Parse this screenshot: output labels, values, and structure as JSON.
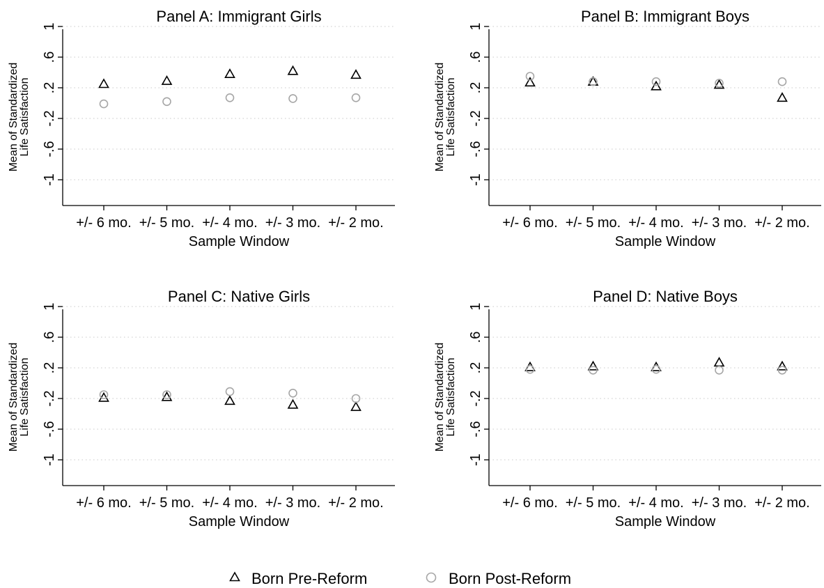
{
  "chart_data": [
    {
      "type": "scatter",
      "title": "Panel A: Immigrant Girls",
      "xlabel": "Sample Window",
      "ylabel": [
        "Mean of Standardized",
        "Life Satisfaction"
      ],
      "categories": [
        "+/- 6 mo.",
        "+/- 5 mo.",
        "+/- 4 mo.",
        "+/- 3 mo.",
        "+/- 2 mo."
      ],
      "yticks": [
        "-1",
        "-.6",
        "-.2",
        ".2",
        ".6",
        "1"
      ],
      "ylim": [
        -1.1,
        1.1
      ],
      "grid": true,
      "series": [
        {
          "name": "Born Pre-Reform",
          "values": [
            0.25,
            0.29,
            0.38,
            0.42,
            0.37
          ]
        },
        {
          "name": "Born Post-Reform",
          "values": [
            -0.01,
            0.02,
            0.07,
            0.06,
            0.07
          ]
        }
      ]
    },
    {
      "type": "scatter",
      "title": "Panel B: Immigrant Boys",
      "xlabel": "Sample Window",
      "ylabel": [
        "Mean of Standardized",
        "Life Satisfaction"
      ],
      "categories": [
        "+/- 6 mo.",
        "+/- 5 mo.",
        "+/- 4 mo.",
        "+/- 3 mo.",
        "+/- 2 mo."
      ],
      "yticks": [
        "-1",
        "-.6",
        "-.2",
        ".2",
        ".6",
        "1"
      ],
      "ylim": [
        -1.1,
        1.1
      ],
      "grid": true,
      "series": [
        {
          "name": "Born Pre-Reform",
          "values": [
            0.27,
            0.28,
            0.22,
            0.24,
            0.07
          ]
        },
        {
          "name": "Born Post-Reform",
          "values": [
            0.35,
            0.28,
            0.28,
            0.26,
            0.28
          ]
        }
      ]
    },
    {
      "type": "scatter",
      "title": "Panel C: Native Girls",
      "xlabel": "Sample Window",
      "ylabel": [
        "Mean of Standardized",
        "Life Satisfaction"
      ],
      "categories": [
        "+/- 6 mo.",
        "+/- 5 mo.",
        "+/- 4 mo.",
        "+/- 3 mo.",
        "+/- 2 mo."
      ],
      "yticks": [
        "-1",
        "-.6",
        "-.2",
        ".2",
        ".6",
        "1"
      ],
      "ylim": [
        -1.1,
        1.1
      ],
      "grid": true,
      "series": [
        {
          "name": "Born Pre-Reform",
          "values": [
            -0.19,
            -0.18,
            -0.23,
            -0.28,
            -0.31
          ]
        },
        {
          "name": "Born Post-Reform",
          "values": [
            -0.15,
            -0.15,
            -0.11,
            -0.13,
            -0.2
          ]
        }
      ]
    },
    {
      "type": "scatter",
      "title": "Panel D: Native Boys",
      "xlabel": "Sample Window",
      "ylabel": [
        "Mean of Standardized",
        "Life Satisfaction"
      ],
      "categories": [
        "+/- 6 mo.",
        "+/- 5 mo.",
        "+/- 4 mo.",
        "+/- 3 mo.",
        "+/- 2 mo."
      ],
      "yticks": [
        "-1",
        "-.6",
        "-.2",
        ".2",
        ".6",
        "1"
      ],
      "ylim": [
        -1.1,
        1.1
      ],
      "grid": true,
      "series": [
        {
          "name": "Born Pre-Reform",
          "values": [
            0.21,
            0.22,
            0.21,
            0.27,
            0.22
          ]
        },
        {
          "name": "Born Post-Reform",
          "values": [
            0.18,
            0.17,
            0.18,
            0.17,
            0.17
          ]
        }
      ]
    }
  ],
  "legend": {
    "placement": "bottom-center",
    "items": [
      {
        "label": "Born Pre-Reform",
        "marker": "triangle-icon",
        "color": "#000000"
      },
      {
        "label": "Born Post-Reform",
        "marker": "circle-icon",
        "color": "#a6a6a6"
      }
    ]
  },
  "colors": {
    "pre_reform": "#000000",
    "post_reform": "#a6a6a6",
    "grid": "#c8c8c8",
    "axis": "#000000"
  }
}
